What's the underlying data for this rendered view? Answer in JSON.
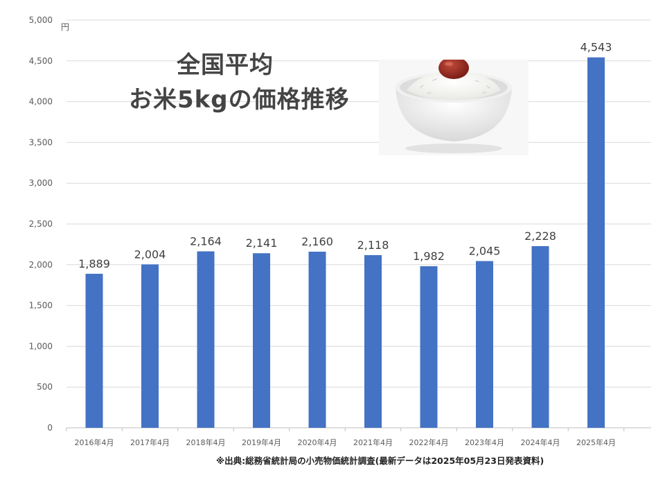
{
  "title": {
    "line1": "全国平均",
    "line2": "お米5kgの価格推移"
  },
  "source_note": "※出典:総務省統計局の小売物価統計調査(最新データは2025年05月23日発表資料)",
  "image": {
    "icon": "rice-bowl-with-umeboshi"
  },
  "colors": {
    "bar": "#4472C4",
    "grid": "#d9d9d9",
    "axis_text": "#595959",
    "label_text": "#404040",
    "title_text": "#444444"
  },
  "chart_data": {
    "type": "bar",
    "categories": [
      "2016年4月",
      "2017年4月",
      "2018年4月",
      "2019年4月",
      "2020年4月",
      "2021年4月",
      "2022年4月",
      "2023年4月",
      "2024年4月",
      "2025年4月"
    ],
    "values": [
      1889,
      2004,
      2164,
      2141,
      2160,
      2118,
      1982,
      2045,
      2228,
      4543
    ],
    "data_labels": [
      "1,889",
      "2,004",
      "2,164",
      "2,141",
      "2,160",
      "2,118",
      "1,982",
      "2,045",
      "2,228",
      "4,543"
    ],
    "ylim": [
      0,
      5000
    ],
    "yticks": [
      0,
      500,
      1000,
      1500,
      2000,
      2500,
      3000,
      3500,
      4000,
      4500,
      5000
    ],
    "ytick_labels": [
      "0",
      "500",
      "1,000",
      "1,500",
      "2,000",
      "2,500",
      "3,000",
      "3,500",
      "4,000",
      "4,500",
      "5,000"
    ],
    "yunit": "円",
    "grid": true,
    "legend": "none"
  }
}
